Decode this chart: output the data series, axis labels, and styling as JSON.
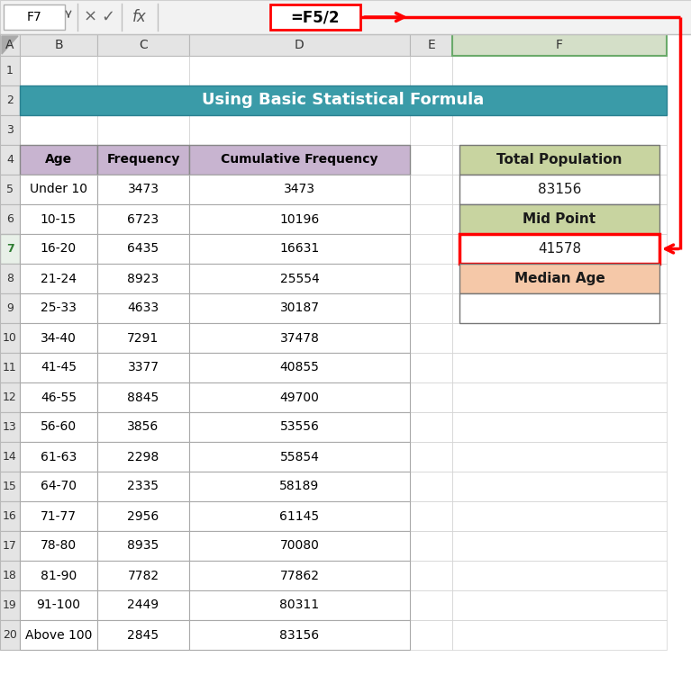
{
  "title": "Using Basic Statistical Formula",
  "title_bg": "#3A9BA8",
  "title_color": "#ffffff",
  "col_headers": [
    "Age",
    "Frequency",
    "Cumulative Frequency"
  ],
  "col_header_bg": "#C8B4D0",
  "rows": [
    [
      "Under 10",
      "3473",
      "3473"
    ],
    [
      "10-15",
      "6723",
      "10196"
    ],
    [
      "16-20",
      "6435",
      "16631"
    ],
    [
      "21-24",
      "8923",
      "25554"
    ],
    [
      "25-33",
      "4633",
      "30187"
    ],
    [
      "34-40",
      "7291",
      "37478"
    ],
    [
      "41-45",
      "3377",
      "40855"
    ],
    [
      "46-55",
      "8845",
      "49700"
    ],
    [
      "56-60",
      "3856",
      "53556"
    ],
    [
      "61-63",
      "2298",
      "55854"
    ],
    [
      "64-70",
      "2335",
      "58189"
    ],
    [
      "71-77",
      "2956",
      "61145"
    ],
    [
      "78-80",
      "8935",
      "70080"
    ],
    [
      "81-90",
      "7782",
      "77862"
    ],
    [
      "91-100",
      "2449",
      "80311"
    ],
    [
      "Above 100",
      "2845",
      "83156"
    ]
  ],
  "right_labels": [
    "Total Population",
    "83156",
    "Mid Point",
    "41578",
    "Median Age",
    ""
  ],
  "right_label_bgs": [
    "#C8D4A0",
    "#ffffff",
    "#C8D4A0",
    "#ffffff",
    "#F5C8A8",
    "#ffffff"
  ],
  "right_label_bold": [
    true,
    false,
    true,
    false,
    true,
    false
  ],
  "excel_col_labels": [
    "A",
    "B",
    "C",
    "D",
    "E",
    "F"
  ],
  "excel_row_labels": [
    "1",
    "2",
    "3",
    "4",
    "5",
    "6",
    "7",
    "8",
    "9",
    "10",
    "11",
    "12",
    "13",
    "14",
    "15",
    "16",
    "17",
    "18",
    "19",
    "20"
  ],
  "formula_bar_text": "=F5/2",
  "cell_ref": "F7",
  "sheet_bg": "#ffffff",
  "grid_color": "#c8c8c8",
  "header_bg": "#e4e4e4",
  "col_header_selected_bg": "#c8d4b8",
  "arrow_color": "#FF0000",
  "formula_box_border": "#FF0000",
  "midpoint_cell_border": "#FF0000",
  "fb_bg": "#f2f2f2",
  "fb_border": "#d0d0d0"
}
